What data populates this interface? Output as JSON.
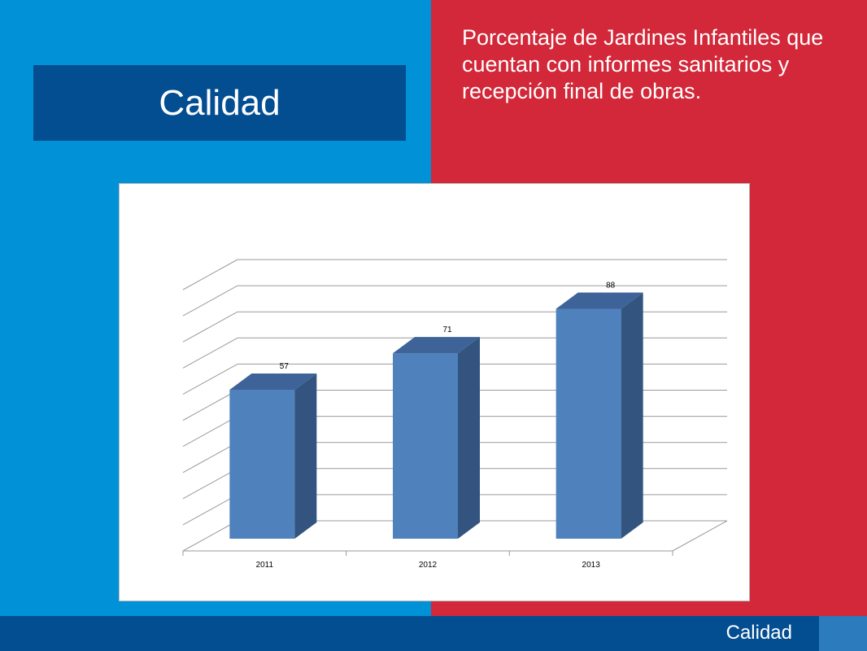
{
  "header": {
    "title": "Calidad",
    "subtitle": "Porcentaje de Jardines Infantiles que cuentan con informes sanitarios y recepción final de obras."
  },
  "footer": {
    "label": "Calidad"
  },
  "colors": {
    "left_bg": "#0191d6",
    "right_bg": "#d22839",
    "title_bg": "#034e91",
    "bar_front": "#4f81bd",
    "bar_side": "#32547e",
    "bar_top": "#3d6399"
  },
  "chart_data": {
    "type": "bar",
    "style": "3d",
    "categories": [
      "2011",
      "2012",
      "2013"
    ],
    "values": [
      57,
      71,
      88
    ],
    "data_labels": [
      "57",
      "71",
      "88"
    ],
    "ylim": [
      0,
      100
    ],
    "grid": true,
    "legend": "none",
    "title": "",
    "xlabel": "",
    "ylabel": ""
  }
}
